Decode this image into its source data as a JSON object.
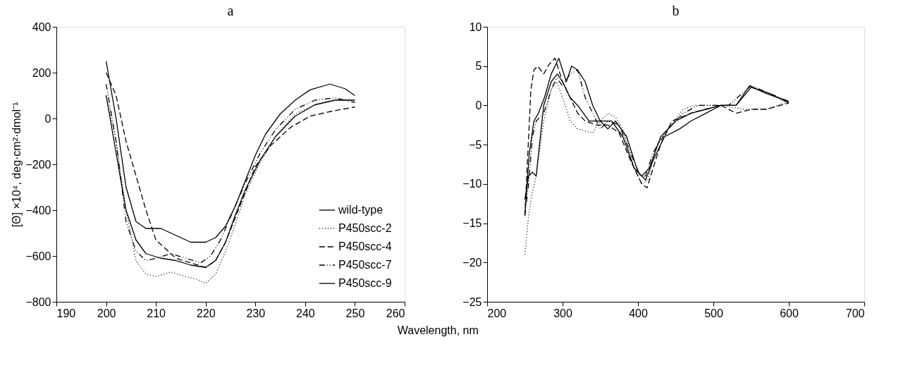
{
  "chart_data": [
    {
      "type": "line",
      "title": "a",
      "xlabel": "Wavelength, nm",
      "ylabel": "[Θ] ×10⁴, deg·cm²·dmol⁻¹",
      "xlim": [
        190,
        260
      ],
      "xticks": [
        190,
        200,
        210,
        220,
        230,
        240,
        250,
        260
      ],
      "ylim": [
        -800,
        400
      ],
      "yticks": [
        {
          "value": -800,
          "label": "−800"
        },
        {
          "value": -600,
          "label": "−600"
        },
        {
          "value": -400,
          "label": "−400"
        },
        {
          "value": -200,
          "label": "−200"
        },
        0,
        200,
        400
      ],
      "grid": false,
      "legend": "bottom right",
      "marker": "none",
      "series": [
        {
          "name": "wild-type",
          "color": "#000000",
          "line_style": "solid",
          "x": [
            200,
            202,
            204,
            206,
            208,
            211,
            214,
            217,
            220,
            222,
            224,
            226,
            228,
            230,
            232,
            235,
            238,
            241,
            245,
            248,
            250
          ],
          "values": [
            250,
            0,
            -300,
            -450,
            -480,
            -480,
            -510,
            -540,
            -540,
            -520,
            -470,
            -380,
            -270,
            -160,
            -70,
            20,
            80,
            125,
            150,
            130,
            100
          ]
        },
        {
          "name": "P450scc-2",
          "color": "#000000",
          "line_style": "dotted",
          "x": [
            200,
            202,
            204,
            206,
            208,
            210,
            213,
            216,
            218,
            220,
            222,
            224,
            226,
            228,
            231,
            234,
            238,
            242,
            246,
            250
          ],
          "values": [
            100,
            -100,
            -400,
            -620,
            -680,
            -690,
            -670,
            -690,
            -700,
            -720,
            -680,
            -580,
            -460,
            -330,
            -190,
            -80,
            20,
            60,
            80,
            80
          ]
        },
        {
          "name": "P450scc-4",
          "color": "#000000",
          "line_style": "dashed",
          "x": [
            200,
            202,
            204,
            206,
            208,
            210,
            212,
            214,
            217,
            220,
            222,
            224,
            226,
            228,
            230,
            233,
            237,
            241,
            245,
            250
          ],
          "values": [
            200,
            100,
            -100,
            -250,
            -400,
            -530,
            -570,
            -610,
            -630,
            -650,
            -620,
            -540,
            -430,
            -320,
            -210,
            -120,
            -40,
            10,
            30,
            50
          ]
        },
        {
          "name": "P450scc-7",
          "color": "#000000",
          "line_style": "dashdot",
          "x": [
            200,
            202,
            204,
            206,
            208,
            210,
            213,
            216,
            219,
            221,
            223,
            226,
            228,
            231,
            234,
            238,
            242,
            246,
            250
          ],
          "values": [
            150,
            -100,
            -450,
            -580,
            -620,
            -610,
            -590,
            -610,
            -630,
            -600,
            -530,
            -380,
            -280,
            -150,
            -50,
            40,
            80,
            90,
            70
          ]
        },
        {
          "name": "P450scc-9",
          "color": "#000000",
          "line_style": "solid",
          "x": [
            200,
            202,
            204,
            206,
            208,
            211,
            214,
            217,
            220,
            222,
            224,
            226,
            228,
            231,
            234,
            238,
            242,
            246,
            250
          ],
          "values": [
            100,
            -150,
            -400,
            -530,
            -590,
            -610,
            -620,
            -640,
            -650,
            -620,
            -540,
            -420,
            -310,
            -180,
            -80,
            10,
            60,
            80,
            80
          ]
        }
      ]
    },
    {
      "type": "line",
      "title": "b",
      "xlim": [
        200,
        700
      ],
      "xticks": [
        200,
        300,
        400,
        500,
        600,
        700
      ],
      "ylim": [
        -25,
        10
      ],
      "yticks": [
        {
          "value": -25,
          "label": "−25"
        },
        {
          "value": -20,
          "label": "−20"
        },
        {
          "value": -15,
          "label": "−15"
        },
        {
          "value": -10,
          "label": "−10"
        },
        {
          "value": -5,
          "label": "−5"
        },
        0,
        5,
        10
      ],
      "grid": false,
      "marker": "none",
      "series": [
        {
          "color": "#000000",
          "line_style": "solid",
          "x": [
            250,
            255,
            260,
            265,
            275,
            285,
            293,
            300,
            310,
            320,
            335,
            350,
            365,
            380,
            395,
            405,
            415,
            430,
            450,
            470,
            490,
            510,
            530,
            550,
            575,
            600
          ],
          "values": [
            -12,
            -9,
            -8.5,
            -9,
            0,
            3,
            4,
            3,
            1,
            0,
            -2,
            -2,
            -2,
            -4,
            -8,
            -9,
            -8,
            -4,
            -2,
            -1,
            -0.5,
            0,
            0,
            2.3,
            1.5,
            0.3
          ]
        },
        {
          "color": "#000000",
          "line_style": "dotted",
          "x": [
            250,
            255,
            260,
            265,
            275,
            285,
            292,
            300,
            310,
            320,
            340,
            350,
            360,
            370,
            380,
            395,
            405,
            413,
            425,
            440,
            460,
            475,
            490,
            510,
            540,
            570,
            600
          ],
          "values": [
            -19,
            -14,
            -11,
            -9,
            -2,
            2,
            3,
            1,
            -2,
            -3,
            -3.5,
            -2,
            -1,
            -1.5,
            -3,
            -8,
            -10,
            -9.5,
            -5,
            -3,
            -0.5,
            0,
            0,
            0,
            -0.5,
            -0.5,
            0.5
          ]
        },
        {
          "color": "#000000",
          "line_style": "dashed",
          "x": [
            250,
            254,
            258,
            262,
            267,
            275,
            282,
            290,
            295,
            300,
            310,
            320,
            330,
            345,
            360,
            375,
            390,
            405,
            412,
            420,
            430,
            445,
            470,
            490,
            510,
            530,
            550,
            570,
            600
          ],
          "values": [
            -14,
            -6,
            2,
            4.5,
            5,
            4,
            5.2,
            6,
            4.5,
            3,
            1,
            -1,
            -2,
            -2.5,
            -2.5,
            -3.5,
            -7,
            -10,
            -10.5,
            -8,
            -5,
            -2,
            -1,
            -0.5,
            0,
            -1,
            -0.5,
            -0.5,
            0.3
          ]
        },
        {
          "color": "#000000",
          "line_style": "dashdot",
          "x": [
            250,
            255,
            260,
            265,
            275,
            285,
            292,
            300,
            310,
            320,
            330,
            340,
            350,
            360,
            375,
            390,
            403,
            410,
            420,
            440,
            460,
            480,
            500,
            520,
            550,
            575,
            600
          ],
          "values": [
            -14,
            -10,
            -4,
            -2,
            -1,
            2,
            3.5,
            2.5,
            4,
            4.5,
            1,
            -1,
            -3,
            -2,
            -2.5,
            -6,
            -9,
            -9,
            -6,
            -3,
            -1,
            0,
            0,
            0,
            2.5,
            1.5,
            0.5
          ]
        },
        {
          "color": "#000000",
          "line_style": "solid",
          "x": [
            250,
            256,
            262,
            268,
            276,
            285,
            295,
            305,
            312,
            320,
            330,
            340,
            350,
            360,
            370,
            385,
            400,
            410,
            420,
            435,
            455,
            470,
            490,
            510,
            530,
            548,
            570,
            600
          ],
          "values": [
            -14,
            -6,
            -2,
            -1,
            1,
            4,
            6,
            3,
            5,
            4.5,
            3,
            0,
            -2,
            -3,
            -2,
            -4,
            -8.5,
            -9.5,
            -7,
            -4,
            -3,
            -2,
            -1,
            0,
            0,
            2.5,
            1.5,
            0.5
          ]
        }
      ]
    }
  ]
}
